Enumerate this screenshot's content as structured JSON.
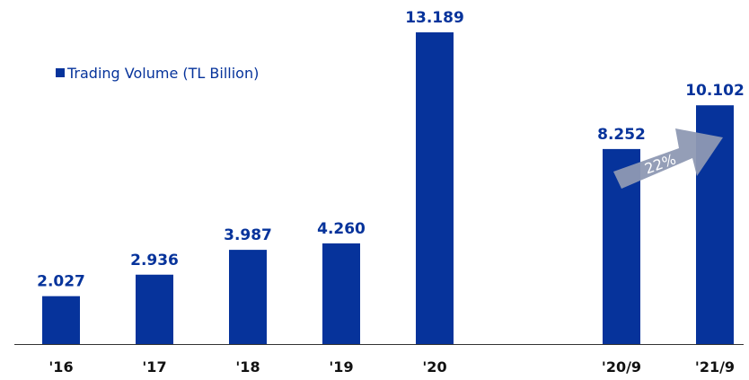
{
  "chart_data": {
    "type": "bar",
    "categories": [
      "'16",
      "'17",
      "'18",
      "'19",
      "'20",
      "'20/9",
      "'21/9"
    ],
    "series": [
      {
        "name": "Trading Volume (TL Billion)",
        "values": [
          2027,
          2936,
          3987,
          4260,
          13189,
          8252,
          10102
        ],
        "labels": [
          "2.027",
          "2.936",
          "3.987",
          "4.260",
          "13.189",
          "8.252",
          "10.102"
        ]
      }
    ],
    "ylim": [
      0,
      13189
    ],
    "grid": false,
    "legend": "top-left",
    "annotation": {
      "text": "22%",
      "from": "'20/9",
      "to": "'21/9"
    }
  },
  "colors": {
    "bar": "#06339b",
    "axis": "#333333",
    "arrow": "#8e99b3",
    "value_label": "#06339b",
    "tick_label": "#111111"
  }
}
